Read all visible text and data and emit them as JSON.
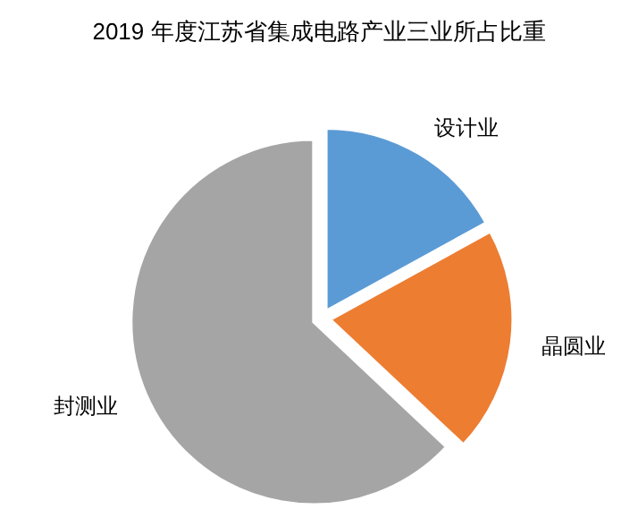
{
  "chart_data": {
    "type": "pie",
    "title": "2019 年度江苏省集成电路产业三业所占比重",
    "categories": [
      "设计业",
      "晶圆业",
      "封测业"
    ],
    "values": [
      17,
      20,
      63
    ],
    "colors": [
      "#5b9bd5",
      "#ed7d31",
      "#a5a5a5"
    ]
  }
}
